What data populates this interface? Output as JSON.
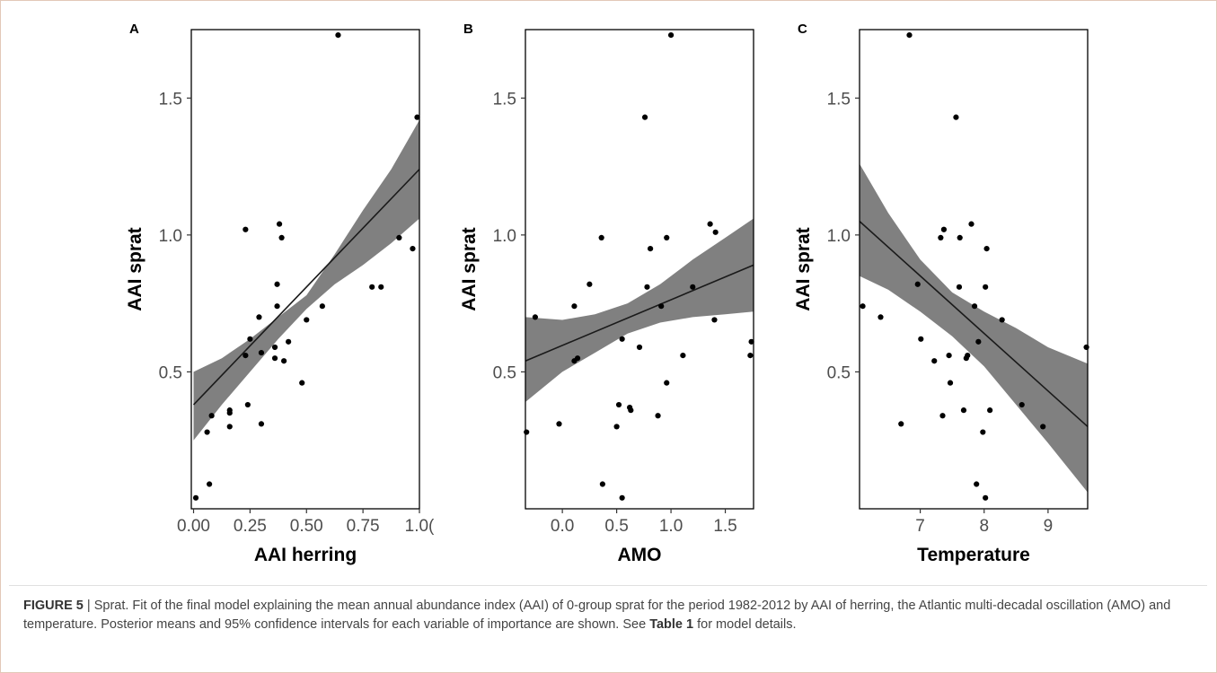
{
  "figure": {
    "caption": {
      "label": "FIGURE 5",
      "sep": " | ",
      "text1": "Sprat. Fit of the final model explaining the mean annual abundance index (AAI) of 0-group sprat for the period 1982-2012 by AAI of herring, the Atlantic multi-decadal oscillation (AMO) and temperature. Posterior means and 95% confidence intervals for each variable of importance are shown. See ",
      "table_ref": "Table 1",
      "text2": " for model  details."
    }
  },
  "chart_data": [
    {
      "type": "scatter",
      "panel_label": "A",
      "xlabel": "AAI herring",
      "ylabel": "AAI sprat",
      "xlim": [
        -0.01,
        1.0
      ],
      "ylim": [
        0.0,
        1.75
      ],
      "xticks": [
        0.0,
        0.25,
        0.5,
        0.75,
        1.0
      ],
      "xtick_labels": [
        "0.00",
        "0.25",
        "0.50",
        "0.75",
        "1.0("
      ],
      "yticks": [
        0.5,
        1.0,
        1.5
      ],
      "ytick_labels": [
        "0.5",
        "1.0",
        "1.5"
      ],
      "points": [
        [
          0.01,
          0.04
        ],
        [
          0.07,
          0.09
        ],
        [
          0.06,
          0.28
        ],
        [
          0.08,
          0.34
        ],
        [
          0.16,
          0.3
        ],
        [
          0.16,
          0.35
        ],
        [
          0.16,
          0.36
        ],
        [
          0.23,
          1.02
        ],
        [
          0.23,
          0.56
        ],
        [
          0.24,
          0.38
        ],
        [
          0.25,
          0.62
        ],
        [
          0.29,
          0.7
        ],
        [
          0.3,
          0.57
        ],
        [
          0.3,
          0.31
        ],
        [
          0.36,
          0.55
        ],
        [
          0.36,
          0.59
        ],
        [
          0.37,
          0.74
        ],
        [
          0.37,
          0.82
        ],
        [
          0.38,
          1.04
        ],
        [
          0.39,
          0.99
        ],
        [
          0.4,
          0.54
        ],
        [
          0.42,
          0.61
        ],
        [
          0.48,
          0.46
        ],
        [
          0.5,
          0.69
        ],
        [
          0.57,
          0.74
        ],
        [
          0.64,
          1.73
        ],
        [
          0.79,
          0.81
        ],
        [
          0.83,
          0.81
        ],
        [
          0.91,
          0.99
        ],
        [
          0.97,
          0.95
        ],
        [
          0.99,
          1.43
        ]
      ],
      "fit": {
        "x": [
          0.0,
          1.0
        ],
        "y": [
          0.38,
          1.24
        ]
      },
      "ci_x": [
        0.0,
        0.125,
        0.25,
        0.375,
        0.5,
        0.625,
        0.75,
        0.875,
        1.0
      ],
      "ci_lower": [
        0.25,
        0.38,
        0.5,
        0.62,
        0.73,
        0.82,
        0.89,
        0.97,
        1.06
      ],
      "ci_upper": [
        0.5,
        0.55,
        0.62,
        0.7,
        0.78,
        0.93,
        1.09,
        1.24,
        1.42
      ]
    },
    {
      "type": "scatter",
      "panel_label": "B",
      "xlabel": "AMO",
      "ylabel": "AAI sprat",
      "xlim": [
        -0.34,
        1.76
      ],
      "ylim": [
        0.0,
        1.75
      ],
      "xticks": [
        0.0,
        0.5,
        1.0,
        1.5
      ],
      "xtick_labels": [
        "0.0",
        "0.5",
        "1.0",
        "1.5"
      ],
      "yticks": [
        0.5,
        1.0,
        1.5
      ],
      "ytick_labels": [
        "0.5",
        "1.0",
        "1.5"
      ],
      "points": [
        [
          -0.33,
          0.28
        ],
        [
          -0.25,
          0.7
        ],
        [
          -0.03,
          0.31
        ],
        [
          0.11,
          0.74
        ],
        [
          0.11,
          0.54
        ],
        [
          0.14,
          0.55
        ],
        [
          0.25,
          0.82
        ],
        [
          0.36,
          0.99
        ],
        [
          0.37,
          0.09
        ],
        [
          0.5,
          0.3
        ],
        [
          0.52,
          0.38
        ],
        [
          0.55,
          0.62
        ],
        [
          0.55,
          0.04
        ],
        [
          0.62,
          0.37
        ],
        [
          0.63,
          0.36
        ],
        [
          0.71,
          0.59
        ],
        [
          0.76,
          1.43
        ],
        [
          0.78,
          0.81
        ],
        [
          0.81,
          0.95
        ],
        [
          0.88,
          0.34
        ],
        [
          0.91,
          0.74
        ],
        [
          0.96,
          0.99
        ],
        [
          0.96,
          0.46
        ],
        [
          1.0,
          1.73
        ],
        [
          1.11,
          0.56
        ],
        [
          1.2,
          0.81
        ],
        [
          1.36,
          1.04
        ],
        [
          1.41,
          1.01
        ],
        [
          1.4,
          0.69
        ],
        [
          1.74,
          0.61
        ],
        [
          1.73,
          0.56
        ]
      ],
      "fit": {
        "x": [
          -0.34,
          1.76
        ],
        "y": [
          0.54,
          0.89
        ]
      },
      "ci_x": [
        -0.34,
        0.0,
        0.3,
        0.6,
        0.9,
        1.2,
        1.5,
        1.76
      ],
      "ci_lower": [
        0.39,
        0.5,
        0.57,
        0.64,
        0.68,
        0.7,
        0.71,
        0.72
      ],
      "ci_upper": [
        0.7,
        0.69,
        0.71,
        0.75,
        0.82,
        0.91,
        0.99,
        1.06
      ]
    },
    {
      "type": "scatter",
      "panel_label": "C",
      "xlabel": "Temperature",
      "ylabel": "AAI sprat",
      "xlim": [
        6.05,
        9.62
      ],
      "ylim": [
        0.0,
        1.75
      ],
      "xticks": [
        7,
        8,
        9
      ],
      "xtick_labels": [
        "7",
        "8",
        "9"
      ],
      "yticks": [
        0.5,
        1.0,
        1.5
      ],
      "ytick_labels": [
        "0.5",
        "1.0",
        "1.5"
      ],
      "points": [
        [
          6.1,
          0.74
        ],
        [
          6.38,
          0.7
        ],
        [
          6.7,
          0.31
        ],
        [
          6.83,
          1.73
        ],
        [
          6.96,
          0.82
        ],
        [
          7.01,
          0.62
        ],
        [
          7.22,
          0.54
        ],
        [
          7.32,
          0.99
        ],
        [
          7.35,
          0.34
        ],
        [
          7.37,
          1.02
        ],
        [
          7.45,
          0.56
        ],
        [
          7.47,
          0.46
        ],
        [
          7.56,
          1.43
        ],
        [
          7.62,
          0.99
        ],
        [
          7.61,
          0.81
        ],
        [
          7.68,
          0.36
        ],
        [
          7.72,
          0.55
        ],
        [
          7.74,
          0.56
        ],
        [
          7.8,
          1.04
        ],
        [
          7.85,
          0.74
        ],
        [
          7.88,
          0.09
        ],
        [
          7.91,
          0.61
        ],
        [
          7.98,
          0.28
        ],
        [
          8.02,
          0.81
        ],
        [
          8.02,
          0.04
        ],
        [
          8.04,
          0.95
        ],
        [
          8.09,
          0.36
        ],
        [
          8.28,
          0.69
        ],
        [
          8.59,
          0.38
        ],
        [
          8.92,
          0.3
        ],
        [
          9.6,
          0.59
        ]
      ],
      "fit": {
        "x": [
          6.05,
          9.62
        ],
        "y": [
          1.05,
          0.3
        ]
      },
      "ci_x": [
        6.05,
        6.5,
        7.0,
        7.5,
        8.0,
        8.5,
        9.0,
        9.62
      ],
      "ci_lower": [
        0.85,
        0.8,
        0.72,
        0.63,
        0.52,
        0.38,
        0.24,
        0.06
      ],
      "ci_upper": [
        1.26,
        1.08,
        0.91,
        0.79,
        0.72,
        0.66,
        0.59,
        0.53
      ]
    }
  ]
}
